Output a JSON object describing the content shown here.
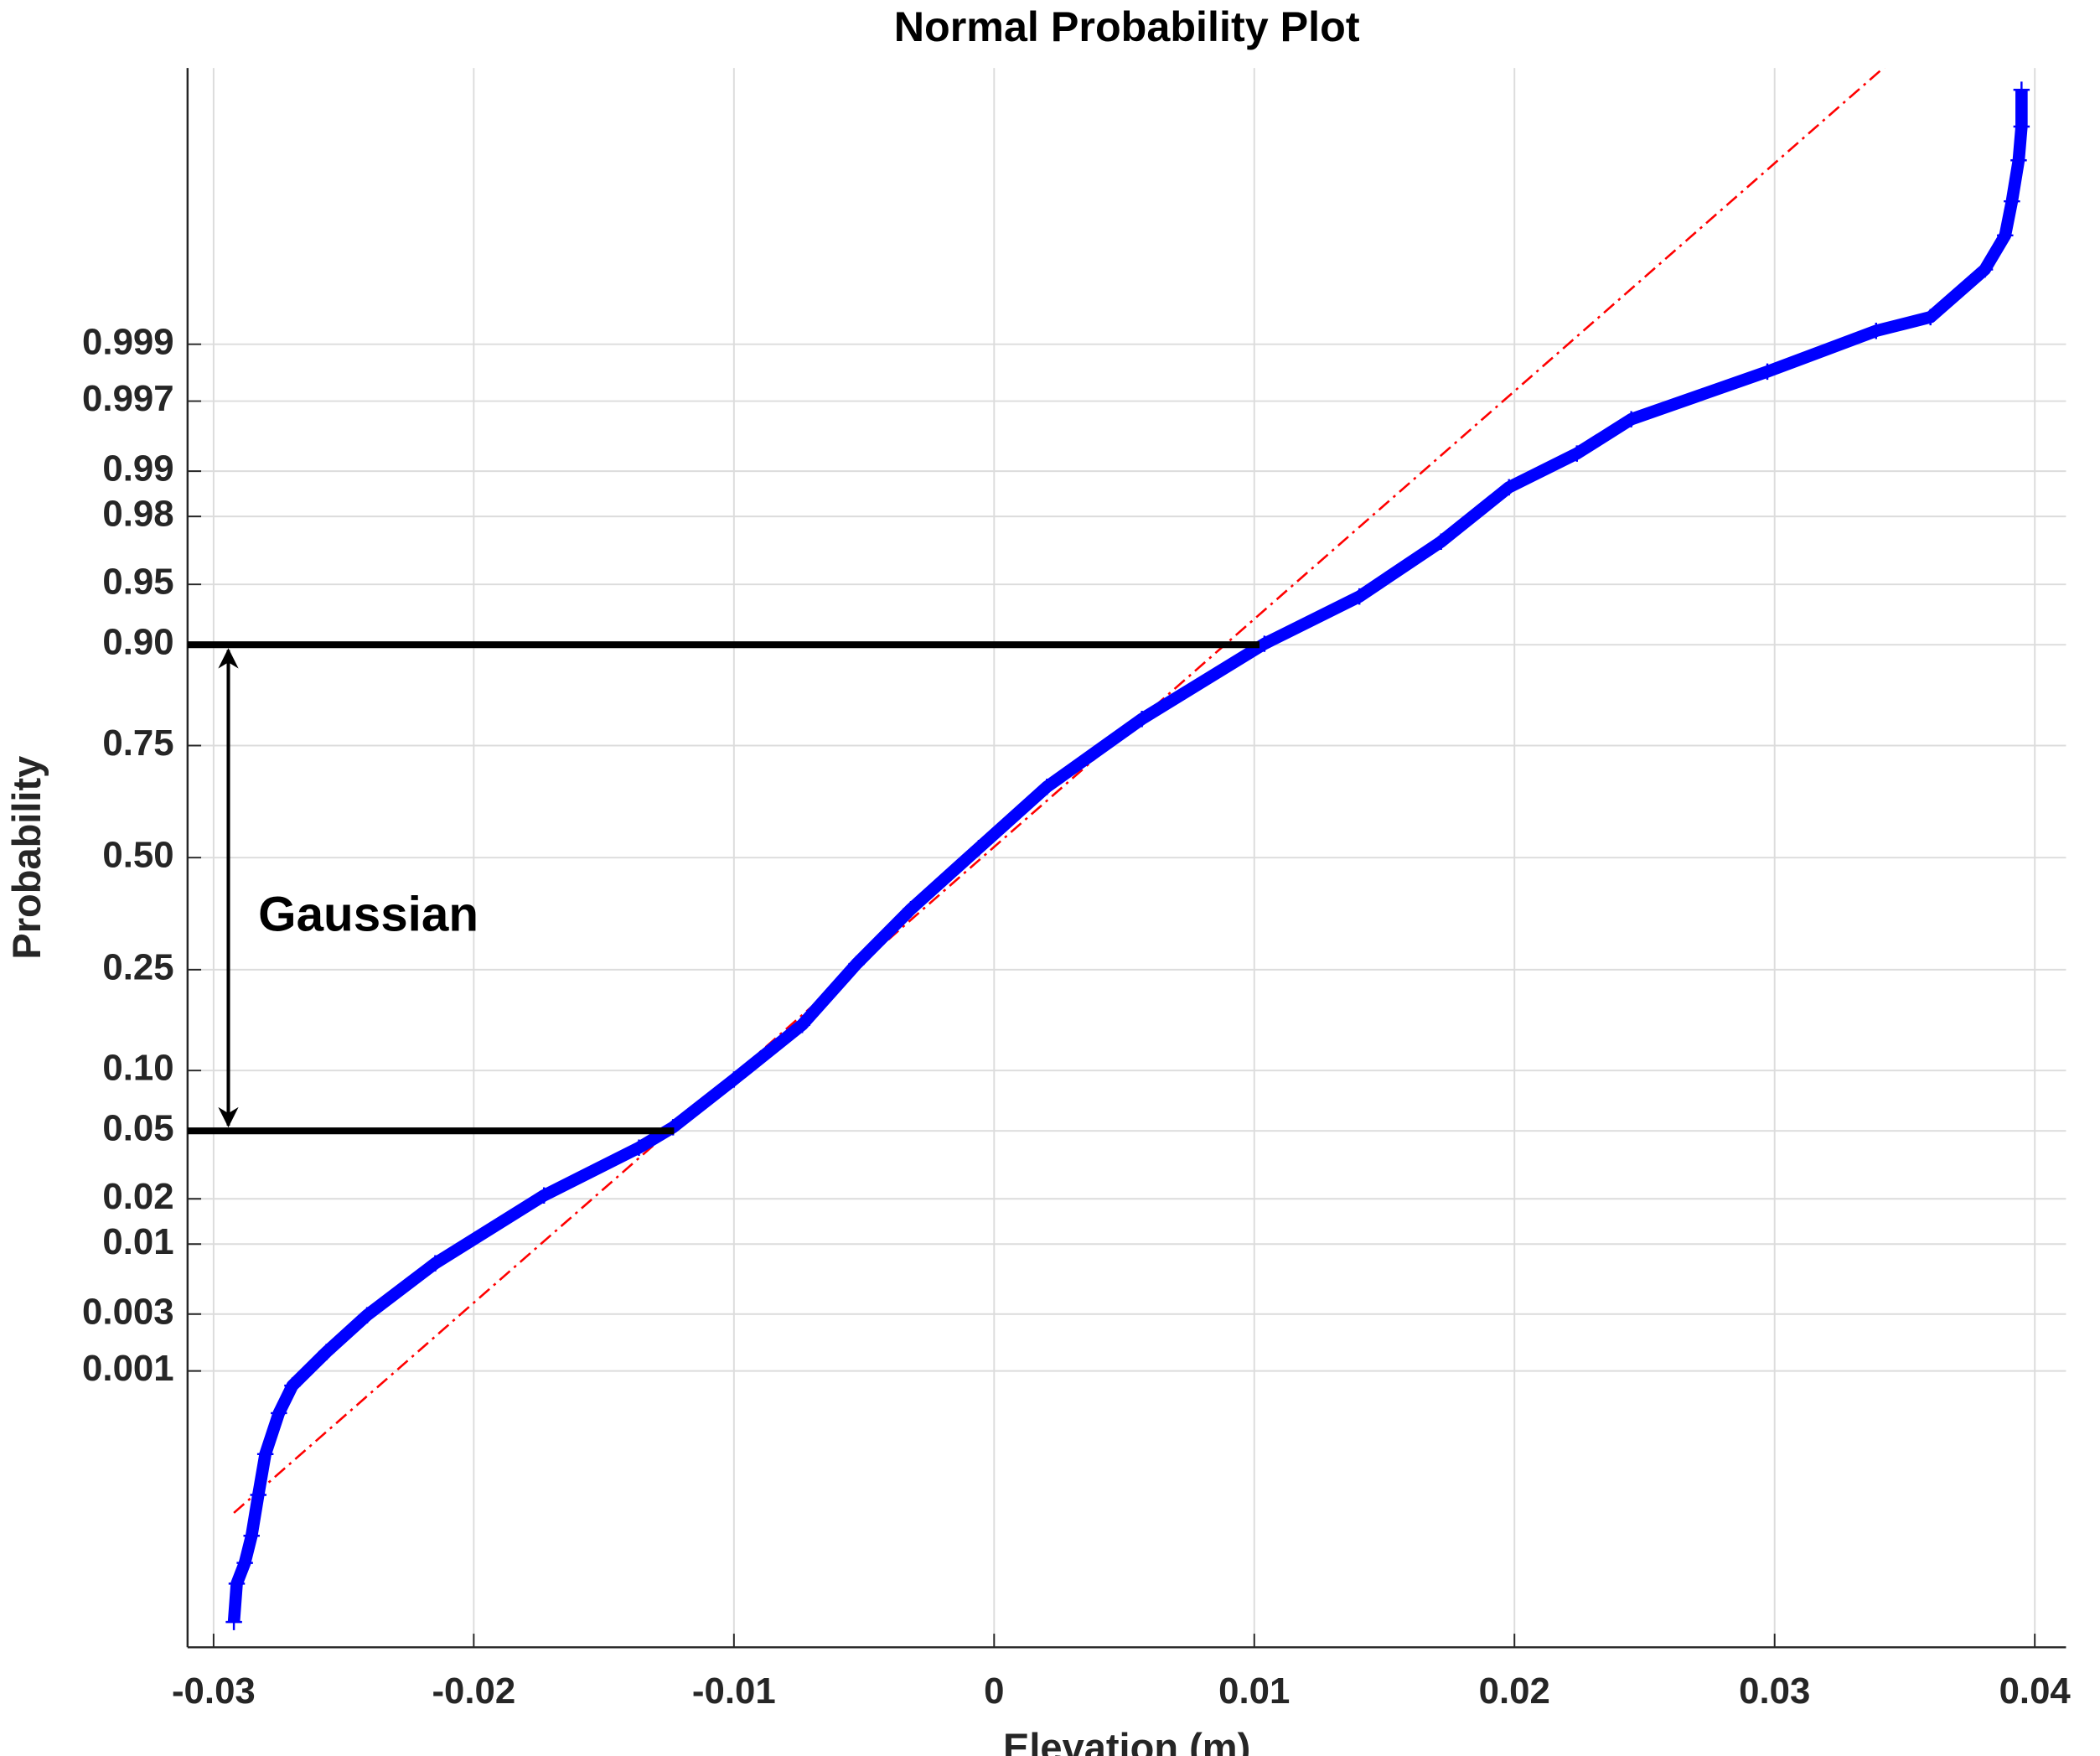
{
  "chart_data": {
    "type": "probability",
    "title": "Normal Probability Plot",
    "x_label": "Elevation (m)",
    "y_label": "Probability",
    "xlim": [
      -0.031,
      0.0412
    ],
    "xticks": [
      -0.03,
      -0.02,
      -0.01,
      0,
      0.01,
      0.02,
      0.03,
      0.04
    ],
    "ylim": [
      1e-06,
      0.999999
    ],
    "yticks": [
      0.001,
      0.003,
      0.01,
      0.02,
      0.05,
      {
        "value": 0.1,
        "label": "0.10"
      },
      0.25,
      {
        "value": 0.5,
        "label": "0.50"
      },
      0.75,
      {
        "value": 0.9,
        "label": "0.90"
      },
      0.95,
      0.98,
      0.99,
      0.997,
      0.999
    ],
    "grid": true,
    "series": [
      {
        "color": "#0000ff",
        "x": [
          -0.02922,
          -0.02911,
          -0.0288,
          -0.02854,
          -0.02828,
          -0.02801,
          -0.02749,
          -0.02697,
          -0.02566,
          -0.0241,
          -0.02148,
          -0.0173,
          -0.01365,
          -0.01234,
          -0.01,
          -0.00738,
          -0.00529,
          -0.0032,
          -0.00059,
          0.00203,
          0.00568,
          0.01039,
          0.01404,
          0.01718,
          0.01979,
          0.0224,
          0.02449,
          0.02972,
          0.0339,
          0.03599,
          0.03808,
          0.03886,
          0.03912,
          0.03938,
          0.03949,
          0.03949
        ],
        "values": [
          2.1e-06,
          6.2e-06,
          1.09e-05,
          2.23e-05,
          6.25e-05,
          0.000165,
          0.000413,
          0.00074,
          0.00146,
          0.00294,
          0.0073,
          0.021,
          0.0404,
          0.0523,
          0.0908,
          0.157,
          0.261,
          0.378,
          0.523,
          0.665,
          0.798,
          0.901,
          0.942,
          0.9714,
          0.9871,
          0.9925,
          0.99584,
          0.99828,
          0.99924,
          0.99943,
          0.9998,
          0.99991,
          0.999961,
          0.9999865,
          0.9999946,
          0.9999981
        ]
      },
      {
        "color": "#ff0000",
        "x": [
          -0.02922,
          0.03442
        ],
        "values": [
          4e-05,
          0.99999915
        ]
      }
    ],
    "annotation": {
      "text": "Gaussian",
      "lower": 0.05,
      "upper": 0.9,
      "lower_x": -0.0123,
      "upper_x": 0.0102
    }
  }
}
